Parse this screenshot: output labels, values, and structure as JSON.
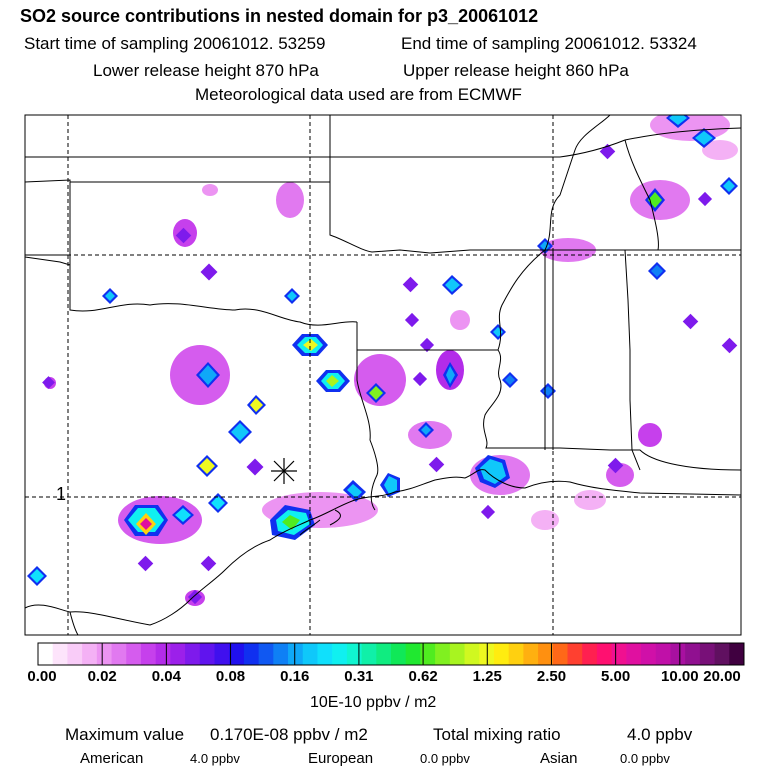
{
  "header": {
    "title": "SO2 source contributions in nested domain for p3_20061012",
    "start_label": "Start time of sampling 20061012. 53259",
    "end_label": "End time of sampling 20061012. 53324",
    "lower_label": "Lower release height  870 hPa",
    "upper_label": "Upper release height  860 hPa",
    "met_label": "Meteorological data used are from ECMWF"
  },
  "map": {
    "grid_label": "1",
    "source_marker": "asterisk-source-marker"
  },
  "colorbar": {
    "ticks": [
      "0.00",
      "0.02",
      "0.04",
      "0.08",
      "0.16",
      "0.31",
      "0.62",
      "1.25",
      "2.50",
      "5.00",
      "10.00",
      "20.00"
    ],
    "units": "10E-10 ppbv / m2",
    "colors": [
      "#ffffff",
      "#fde4fb",
      "#f9ccf8",
      "#f4b1f5",
      "#ec94f2",
      "#e179f0",
      "#d55cee",
      "#c640ec",
      "#b32ce9",
      "#9c20ea",
      "#7e1aec",
      "#6014ee",
      "#4010ee",
      "#2010ee",
      "#1030f0",
      "#1058f2",
      "#0f80f5",
      "#0fa8f8",
      "#0fc8fa",
      "#10e0fc",
      "#10f0f0",
      "#10f5d0",
      "#10f0a8",
      "#10ec80",
      "#10e858",
      "#20e830",
      "#50ec20",
      "#80f020",
      "#a8f420",
      "#d0f820",
      "#eef820",
      "#ffec10",
      "#ffd010",
      "#ffb010",
      "#ff9010",
      "#ff6818",
      "#ff4030",
      "#ff2050",
      "#ff1070",
      "#f01090",
      "#e010a0",
      "#d010a8",
      "#c010a8",
      "#a810a0",
      "#901090",
      "#781078",
      "#601060",
      "#400040"
    ]
  },
  "footer": {
    "max_label": "Maximum value",
    "max_value": "0.170E-08 ppbv / m2",
    "total_label": "Total mixing ratio",
    "total_value": "4.0 ppbv",
    "american_label": "American",
    "american_value": "4.0 ppbv",
    "european_label": "European",
    "european_value": "0.0 ppbv",
    "asian_label": "Asian",
    "asian_value": "0.0 ppbv"
  }
}
